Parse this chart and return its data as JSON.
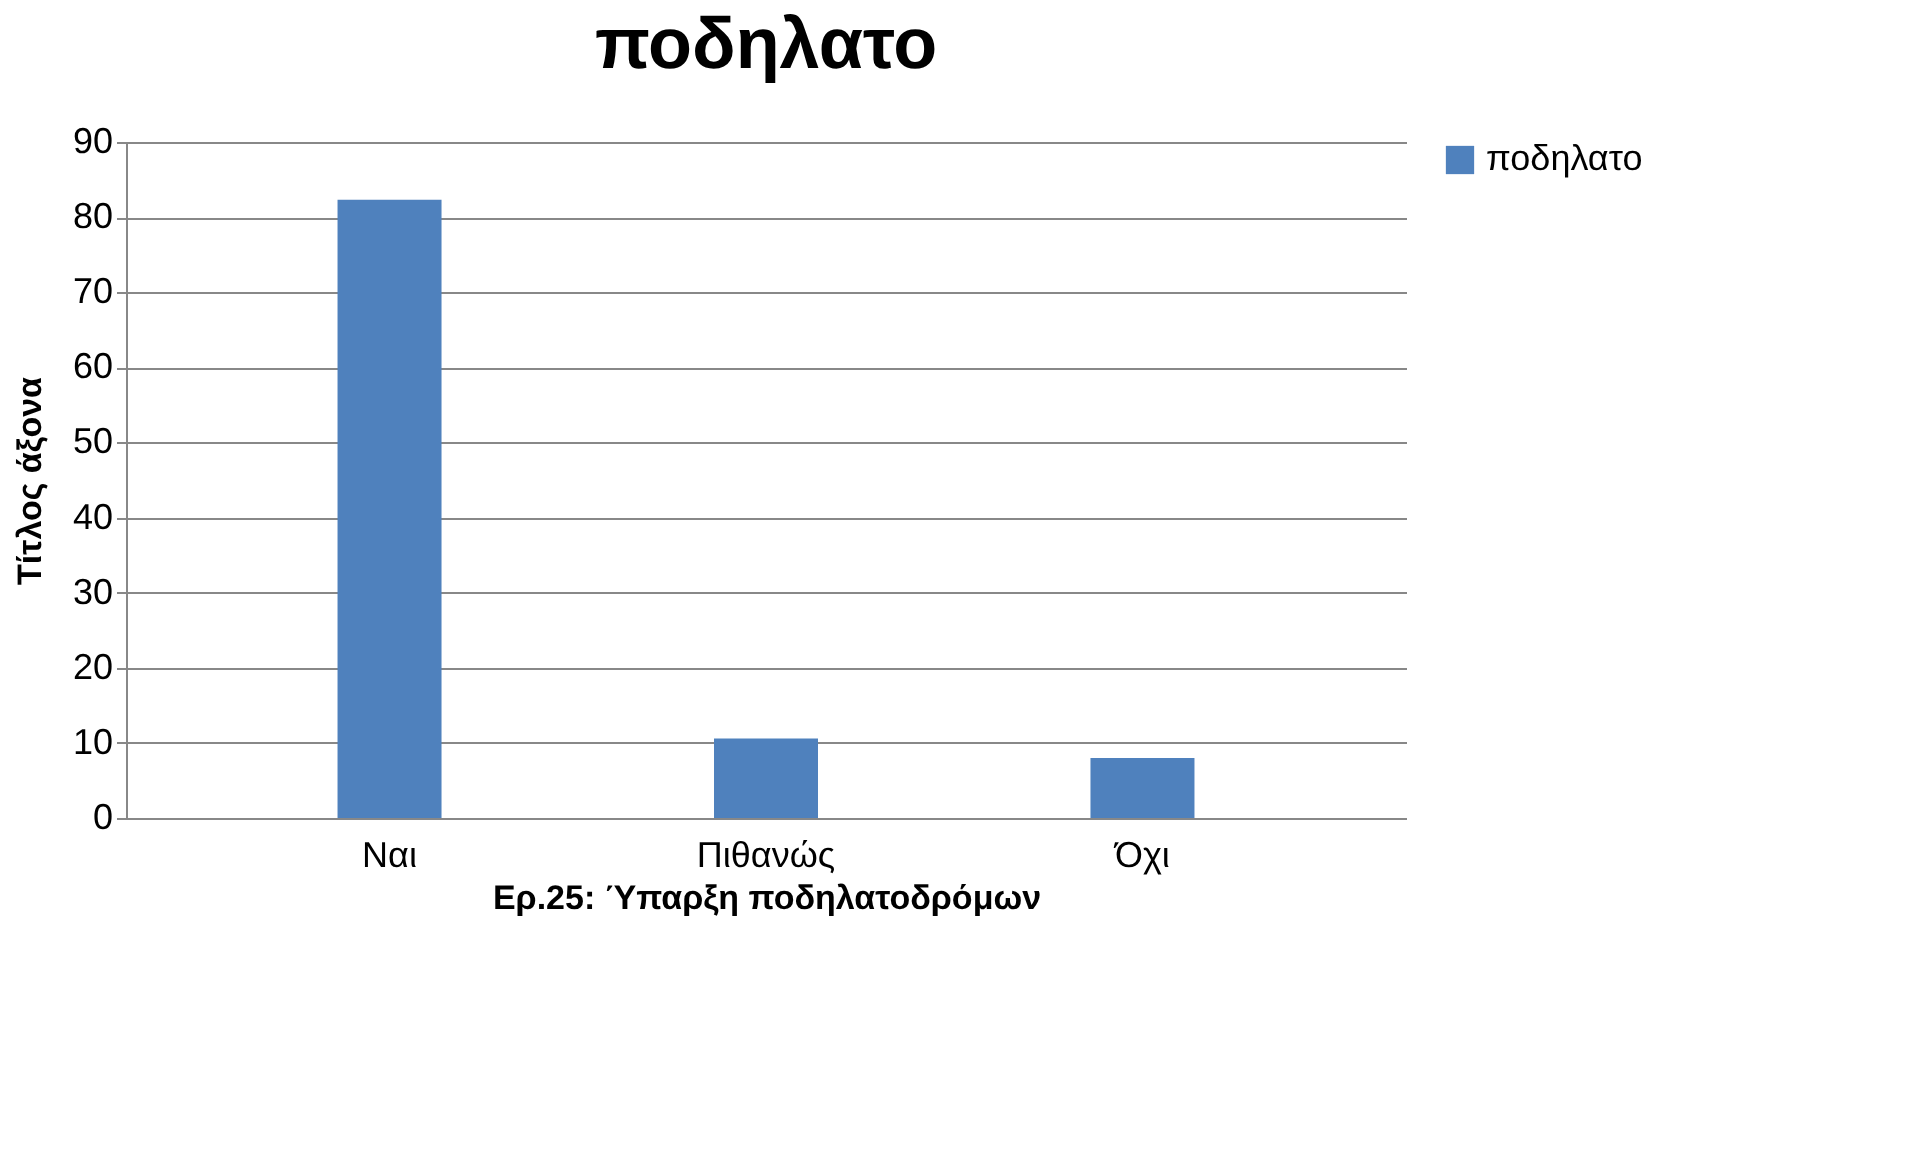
{
  "chart_data": {
    "type": "bar",
    "title": "ποδηλατο",
    "xlabel": "Ερ.25: Ύπαρξη ποδηλατοδρόμων",
    "ylabel": "Τίτλος άξονα",
    "categories": [
      "Ναι",
      "Πιθανώς",
      "Όχι"
    ],
    "series": [
      {
        "name": "ποδηλατο",
        "color": "#4f81bd",
        "values": [
          82.3,
          10.6,
          8.0
        ]
      }
    ],
    "ylim": [
      0,
      90
    ],
    "yticks": [
      0,
      10,
      20,
      30,
      40,
      50,
      60,
      70,
      80,
      90
    ],
    "grid": "y",
    "legend": "right"
  }
}
